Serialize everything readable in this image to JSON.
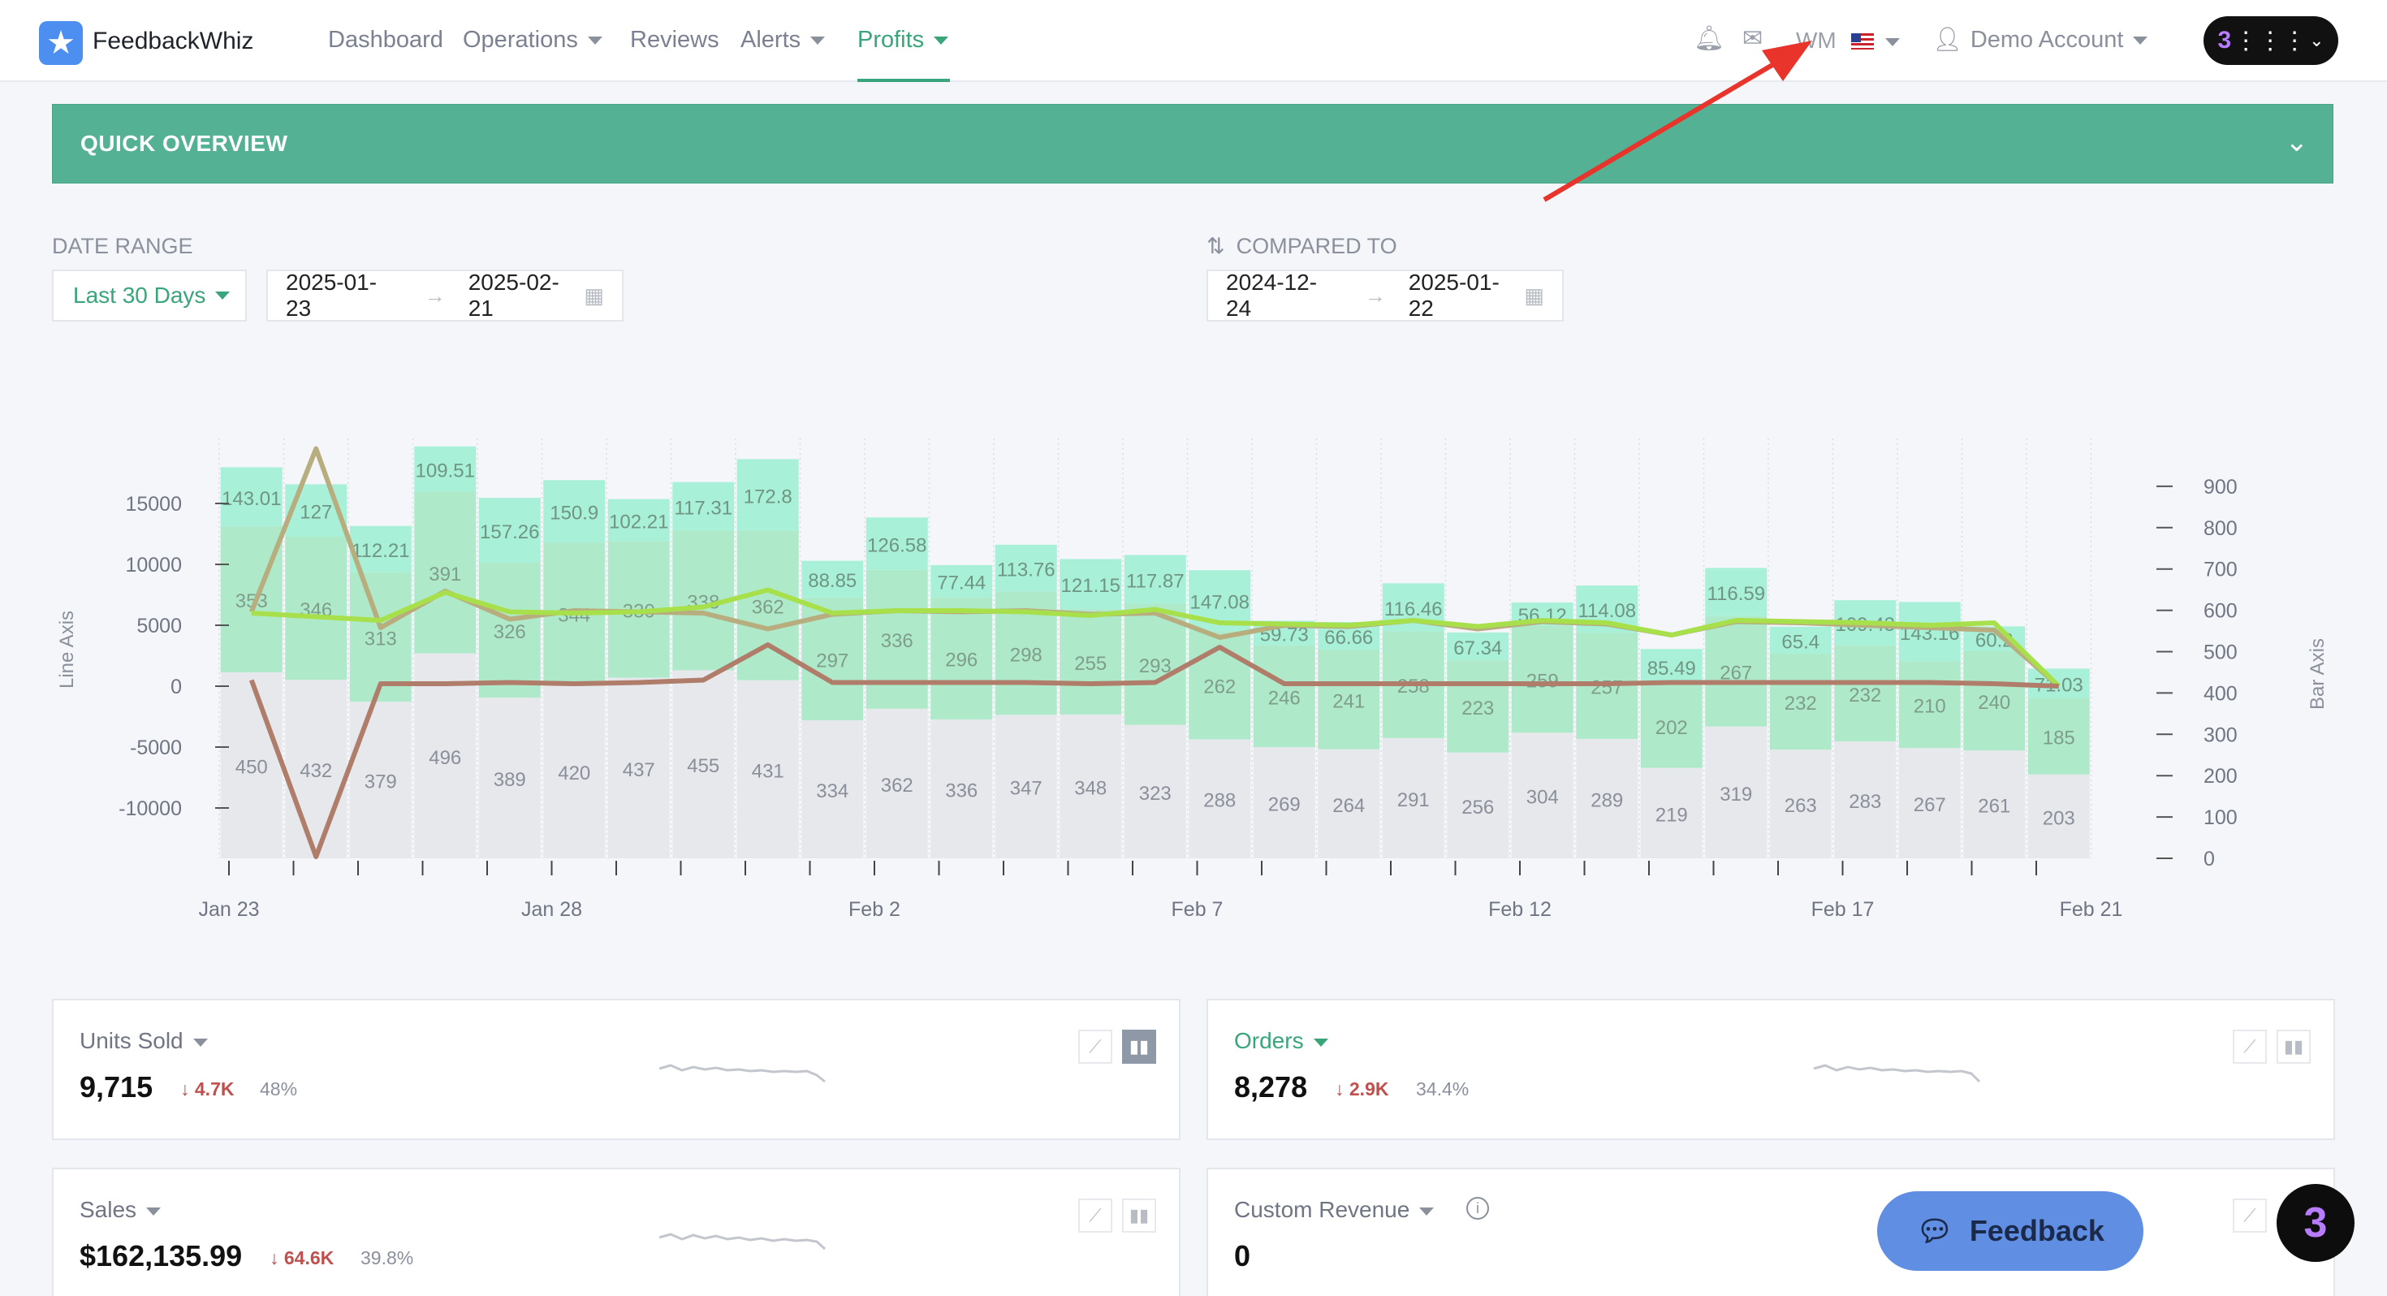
{
  "nav": {
    "brand": "FeedbackWhiz",
    "items": [
      {
        "label": "Dashboard"
      },
      {
        "label": "Operations"
      },
      {
        "label": "Reviews"
      },
      {
        "label": "Alerts"
      },
      {
        "label": "Profits"
      }
    ],
    "marketplace": "WM",
    "user": "Demo Account"
  },
  "overview": {
    "title": "QUICK OVERVIEW"
  },
  "filters": {
    "date_range_label": "DATE RANGE",
    "range_preset": "Last 30 Days",
    "start": "2025-01-23",
    "end": "2025-02-21",
    "compared_label": "COMPARED TO",
    "cmp_start": "2024-12-24",
    "cmp_end": "2025-01-22"
  },
  "chart_data": {
    "type": "bar",
    "ylabel_left": "Line Axis",
    "ylabel_right": "Bar Axis",
    "left_ticks": [
      "15000",
      "10000",
      "5000",
      "0",
      "-5000",
      "-10000"
    ],
    "right_ticks": [
      "900",
      "800",
      "700",
      "600",
      "500",
      "400",
      "300",
      "200",
      "100",
      "0"
    ],
    "x_tick_labels": [
      "Jan 23",
      "Jan 28",
      "Feb 2",
      "Feb 7",
      "Feb 12",
      "Feb 17",
      "Feb 21"
    ],
    "left_ylim": [
      -14000,
      19500
    ],
    "right_ylim": [
      0,
      930
    ],
    "bar_bottom_values": [
      450,
      432,
      379,
      496,
      389,
      420,
      437,
      455,
      431,
      334,
      362,
      336,
      347,
      348,
      323,
      288,
      269,
      264,
      291,
      256,
      304,
      289,
      219,
      319,
      263,
      283,
      267,
      261,
      203
    ],
    "bar_green_values": [
      353,
      346,
      313,
      391,
      326,
      344,
      330,
      338,
      362,
      297,
      336,
      296,
      298,
      255,
      293,
      262,
      246,
      241,
      258,
      223,
      259,
      257,
      202,
      267,
      232,
      232,
      210,
      240,
      185
    ],
    "bar_top_values": [
      "143.01",
      "127",
      "112.21",
      "109.51",
      "157.26",
      "150.9",
      "102.21",
      "117.31",
      "172.8",
      "88.85",
      "126.58",
      "77.44",
      "113.76",
      "121.15",
      "117.87",
      "147.08",
      "59.73",
      "66.66",
      "116.46",
      "67.34",
      "56.12",
      "114.08",
      "85.49",
      "116.59",
      "65.4",
      "109.43",
      "143.16",
      "60.2",
      "71.03"
    ],
    "series": [
      {
        "name": "",
        "color": "#b8ad7e",
        "values": [
          6100,
          19500,
          4800,
          7800,
          5500,
          6200,
          6100,
          6000,
          4700,
          5900,
          6200,
          6100,
          6200,
          5900,
          6000,
          4000,
          5000,
          4900,
          5400,
          4700,
          5300,
          5100,
          4200,
          5300,
          5200,
          5000,
          4800,
          4600,
          0
        ]
      },
      {
        "name": "",
        "color": "#a7e04b",
        "values": [
          6000,
          5700,
          5400,
          7700,
          6100,
          6000,
          6100,
          6500,
          7900,
          6000,
          6200,
          6200,
          6100,
          5800,
          6300,
          5200,
          5100,
          5000,
          5400,
          4900,
          5400,
          5200,
          4200,
          5400,
          5300,
          5200,
          5000,
          5200,
          0
        ]
      },
      {
        "name": "",
        "color": "#b07d6a",
        "values": [
          500,
          -14000,
          200,
          200,
          300,
          200,
          300,
          500,
          3400,
          300,
          300,
          300,
          300,
          200,
          300,
          3200,
          200,
          200,
          200,
          200,
          200,
          200,
          300,
          300,
          300,
          300,
          300,
          200,
          0
        ]
      }
    ]
  },
  "cards": {
    "units": {
      "title": "Units Sold",
      "value": "9,715",
      "delta": "4.7K",
      "pct": "48%"
    },
    "orders": {
      "title": "Orders",
      "value": "8,278",
      "delta": "2.9K",
      "pct": "34.4%"
    },
    "sales": {
      "title": "Sales",
      "value": "$162,135.99",
      "delta": "64.6K",
      "pct": "39.8%"
    },
    "custom": {
      "title": "Custom Revenue",
      "value": "0"
    }
  },
  "feedback": {
    "label": "Feedback"
  },
  "icons": [
    "bell-icon",
    "mail-icon",
    "flag-icon",
    "user-icon",
    "apps-grid-icon",
    "chevron-down-icon",
    "calendar-icon",
    "line-chart-icon",
    "bar-chart-icon",
    "info-icon",
    "chat-icon"
  ]
}
